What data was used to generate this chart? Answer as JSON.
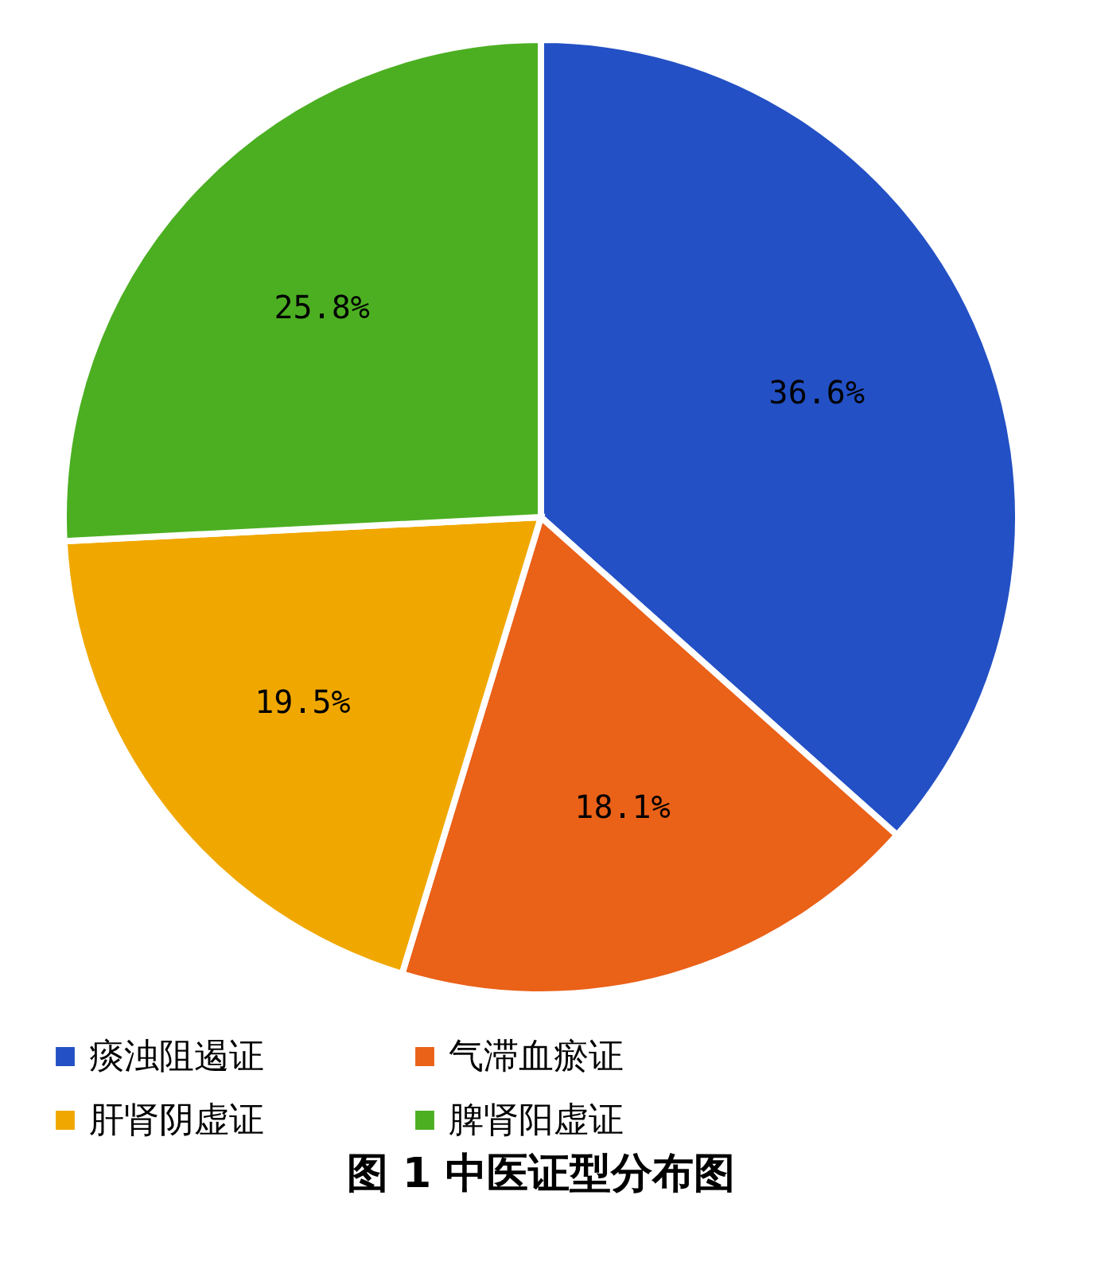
{
  "chart_data": {
    "type": "pie",
    "title": "图 1  中医证型分布图",
    "categories": [
      "痰浊阻遏证",
      "气滞血瘀证",
      "肝肾阴虚证",
      "脾肾阳虚证"
    ],
    "values": [
      36.6,
      18.1,
      19.5,
      25.8
    ],
    "colors": [
      "#2350c4",
      "#ea6118",
      "#f0a800",
      "#4caf22"
    ],
    "value_labels": [
      "36.6%",
      "18.1%",
      "19.5%",
      "25.8%"
    ],
    "legend": "bottom"
  }
}
